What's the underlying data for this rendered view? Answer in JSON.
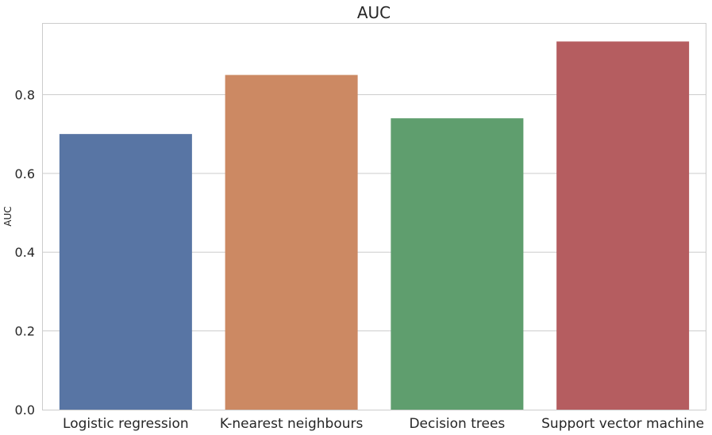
{
  "chart_data": {
    "type": "bar",
    "title": "AUC",
    "xlabel": "",
    "ylabel": "AUC",
    "categories": [
      "Logistic regression",
      "K-nearest neighbours",
      "Decision trees",
      "Support vector machine"
    ],
    "values": [
      0.7,
      0.85,
      0.74,
      0.935
    ],
    "colors": [
      "#5875a4",
      "#cc8963",
      "#5f9e6e",
      "#b55d60"
    ],
    "ylim": [
      0,
      0.98
    ],
    "yticks": [
      "0.0",
      "0.2",
      "0.4",
      "0.6",
      "0.8"
    ],
    "grid": true,
    "legend": "none"
  }
}
